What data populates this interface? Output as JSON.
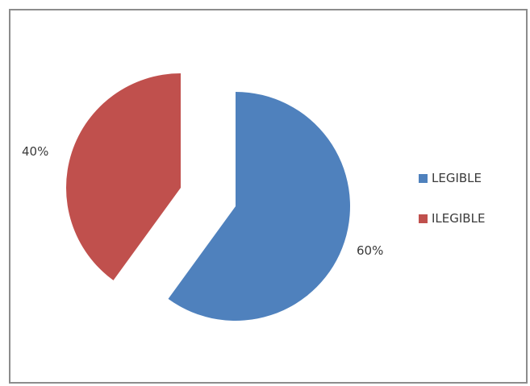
{
  "chart_data": {
    "type": "pie",
    "categories": [
      "LEGIBLE",
      "ILEGIBLE"
    ],
    "values": [
      60,
      40
    ],
    "data_labels": [
      "60%",
      "40%"
    ],
    "colors": [
      "#4f81bd",
      "#c0504d"
    ],
    "exploded": true,
    "legend_position": "right",
    "title": ""
  },
  "legend": {
    "items": [
      {
        "label": "LEGIBLE",
        "color": "#4f81bd"
      },
      {
        "label": "ILEGIBLE",
        "color": "#c0504d"
      }
    ]
  }
}
